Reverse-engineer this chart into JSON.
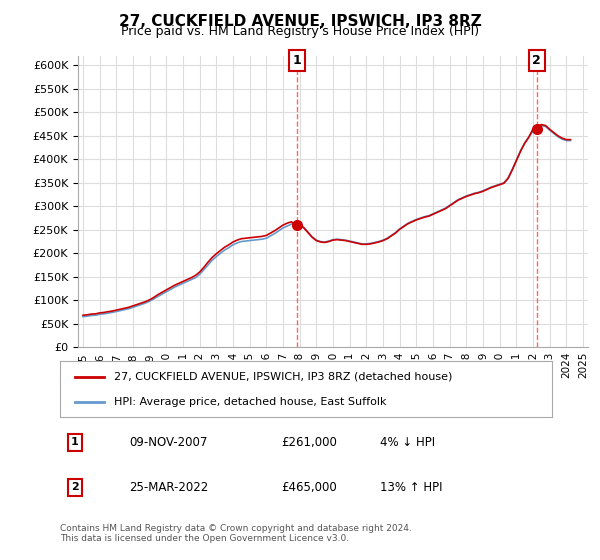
{
  "title": "27, CUCKFIELD AVENUE, IPSWICH, IP3 8RZ",
  "subtitle": "Price paid vs. HM Land Registry's House Price Index (HPI)",
  "legend_label_red": "27, CUCKFIELD AVENUE, IPSWICH, IP3 8RZ (detached house)",
  "legend_label_blue": "HPI: Average price, detached house, East Suffolk",
  "annotation1_label": "1",
  "annotation1_date": "09-NOV-2007",
  "annotation1_price": "£261,000",
  "annotation1_hpi": "4% ↓ HPI",
  "annotation2_label": "2",
  "annotation2_date": "25-MAR-2022",
  "annotation2_price": "£465,000",
  "annotation2_hpi": "13% ↑ HPI",
  "footnote": "Contains HM Land Registry data © Crown copyright and database right 2024.\nThis data is licensed under the Open Government Licence v3.0.",
  "ylim": [
    0,
    620000
  ],
  "yticks": [
    0,
    50000,
    100000,
    150000,
    200000,
    250000,
    300000,
    350000,
    400000,
    450000,
    500000,
    550000,
    600000
  ],
  "line_color_red": "#cc0000",
  "line_color_blue": "#6699cc",
  "vline_color": "#ff6666",
  "marker_color_red": "#cc0000",
  "bg_color": "#ffffff",
  "grid_color": "#dddddd",
  "sale1_x": 2007.86,
  "sale1_y": 261000,
  "sale2_x": 2022.23,
  "sale2_y": 465000,
  "hpi_x": [
    1995,
    1995.25,
    1995.5,
    1995.75,
    1996,
    1996.25,
    1996.5,
    1996.75,
    1997,
    1997.25,
    1997.5,
    1997.75,
    1998,
    1998.25,
    1998.5,
    1998.75,
    1999,
    1999.25,
    1999.5,
    1999.75,
    2000,
    2000.25,
    2000.5,
    2000.75,
    2001,
    2001.25,
    2001.5,
    2001.75,
    2002,
    2002.25,
    2002.5,
    2002.75,
    2003,
    2003.25,
    2003.5,
    2003.75,
    2004,
    2004.25,
    2004.5,
    2004.75,
    2005,
    2005.25,
    2005.5,
    2005.75,
    2006,
    2006.25,
    2006.5,
    2006.75,
    2007,
    2007.25,
    2007.5,
    2007.75,
    2008,
    2008.25,
    2008.5,
    2008.75,
    2009,
    2009.25,
    2009.5,
    2009.75,
    2010,
    2010.25,
    2010.5,
    2010.75,
    2011,
    2011.25,
    2011.5,
    2011.75,
    2012,
    2012.25,
    2012.5,
    2012.75,
    2013,
    2013.25,
    2013.5,
    2013.75,
    2014,
    2014.25,
    2014.5,
    2014.75,
    2015,
    2015.25,
    2015.5,
    2015.75,
    2016,
    2016.25,
    2016.5,
    2016.75,
    2017,
    2017.25,
    2017.5,
    2017.75,
    2018,
    2018.25,
    2018.5,
    2018.75,
    2019,
    2019.25,
    2019.5,
    2019.75,
    2020,
    2020.25,
    2020.5,
    2020.75,
    2021,
    2021.25,
    2021.5,
    2021.75,
    2022,
    2022.25,
    2022.5,
    2022.75,
    2023,
    2023.25,
    2023.5,
    2023.75,
    2024,
    2024.25
  ],
  "hpi_y": [
    65000,
    66000,
    67500,
    68000,
    70000,
    71000,
    72500,
    74000,
    76000,
    78000,
    80000,
    82000,
    85000,
    88000,
    91000,
    94000,
    98000,
    103000,
    108000,
    113000,
    118000,
    123000,
    128000,
    132000,
    136000,
    140000,
    144000,
    148000,
    155000,
    165000,
    175000,
    185000,
    193000,
    200000,
    207000,
    212000,
    218000,
    222000,
    225000,
    226000,
    227000,
    228000,
    229000,
    230000,
    232000,
    237000,
    242000,
    248000,
    254000,
    258000,
    262000,
    264000,
    262000,
    255000,
    245000,
    235000,
    228000,
    225000,
    224000,
    226000,
    229000,
    230000,
    229000,
    228000,
    226000,
    224000,
    222000,
    220000,
    220000,
    221000,
    223000,
    225000,
    228000,
    232000,
    238000,
    244000,
    252000,
    258000,
    264000,
    268000,
    272000,
    275000,
    278000,
    280000,
    284000,
    288000,
    292000,
    296000,
    302000,
    308000,
    314000,
    318000,
    322000,
    325000,
    328000,
    330000,
    333000,
    337000,
    341000,
    344000,
    347000,
    350000,
    360000,
    378000,
    398000,
    418000,
    435000,
    448000,
    460000,
    468000,
    472000,
    470000,
    462000,
    455000,
    448000,
    443000,
    440000,
    440000
  ],
  "red_x": [
    1995,
    1995.25,
    1995.5,
    1995.75,
    1996,
    1996.25,
    1996.5,
    1996.75,
    1997,
    1997.25,
    1997.5,
    1997.75,
    1998,
    1998.25,
    1998.5,
    1998.75,
    1999,
    1999.25,
    1999.5,
    1999.75,
    2000,
    2000.25,
    2000.5,
    2000.75,
    2001,
    2001.25,
    2001.5,
    2001.75,
    2002,
    2002.25,
    2002.5,
    2002.75,
    2003,
    2003.25,
    2003.5,
    2003.75,
    2004,
    2004.25,
    2004.5,
    2004.75,
    2005,
    2005.25,
    2005.5,
    2005.75,
    2006,
    2006.25,
    2006.5,
    2006.75,
    2007,
    2007.25,
    2007.5,
    2007.75,
    2008,
    2008.25,
    2008.5,
    2008.75,
    2009,
    2009.25,
    2009.5,
    2009.75,
    2010,
    2010.25,
    2010.5,
    2010.75,
    2011,
    2011.25,
    2011.5,
    2011.75,
    2012,
    2012.25,
    2012.5,
    2012.75,
    2013,
    2013.25,
    2013.5,
    2013.75,
    2014,
    2014.25,
    2014.5,
    2014.75,
    2015,
    2015.25,
    2015.5,
    2015.75,
    2016,
    2016.25,
    2016.5,
    2016.75,
    2017,
    2017.25,
    2017.5,
    2017.75,
    2018,
    2018.25,
    2018.5,
    2018.75,
    2019,
    2019.25,
    2019.5,
    2019.75,
    2020,
    2020.25,
    2020.5,
    2020.75,
    2021,
    2021.25,
    2021.5,
    2021.75,
    2022,
    2022.25,
    2022.5,
    2022.75,
    2023,
    2023.25,
    2023.5,
    2023.75,
    2024,
    2024.25
  ],
  "red_y": [
    68000,
    69000,
    70500,
    71000,
    73000,
    74000,
    75500,
    77000,
    79000,
    81000,
    83000,
    85000,
    88000,
    91000,
    94000,
    97000,
    101000,
    106000,
    112000,
    117000,
    122000,
    127000,
    132000,
    136000,
    140000,
    144000,
    148000,
    153000,
    160000,
    170000,
    181000,
    191000,
    199000,
    206000,
    213000,
    218000,
    224000,
    228000,
    231000,
    232000,
    233000,
    234000,
    235000,
    236000,
    238000,
    243000,
    248000,
    254000,
    260000,
    264000,
    267000,
    261000,
    261000,
    254000,
    244000,
    234000,
    227000,
    224000,
    223000,
    225000,
    228000,
    229000,
    228000,
    227000,
    225000,
    223000,
    221000,
    219000,
    219000,
    220000,
    222000,
    224000,
    227000,
    231000,
    237000,
    243000,
    251000,
    257000,
    263000,
    267000,
    271000,
    274000,
    277000,
    279000,
    283000,
    287000,
    291000,
    295000,
    301000,
    307000,
    313000,
    317000,
    321000,
    324000,
    327000,
    329000,
    332000,
    336000,
    340000,
    343000,
    346000,
    349000,
    359000,
    377000,
    397000,
    417000,
    434000,
    447000,
    465000,
    470000,
    474000,
    472000,
    464000,
    457000,
    450000,
    445000,
    442000,
    442000
  ],
  "xticks": [
    1995,
    1996,
    1997,
    1998,
    1999,
    2000,
    2001,
    2002,
    2003,
    2004,
    2005,
    2006,
    2007,
    2008,
    2009,
    2010,
    2011,
    2012,
    2013,
    2014,
    2015,
    2016,
    2017,
    2018,
    2019,
    2020,
    2021,
    2022,
    2023,
    2024,
    2025
  ]
}
